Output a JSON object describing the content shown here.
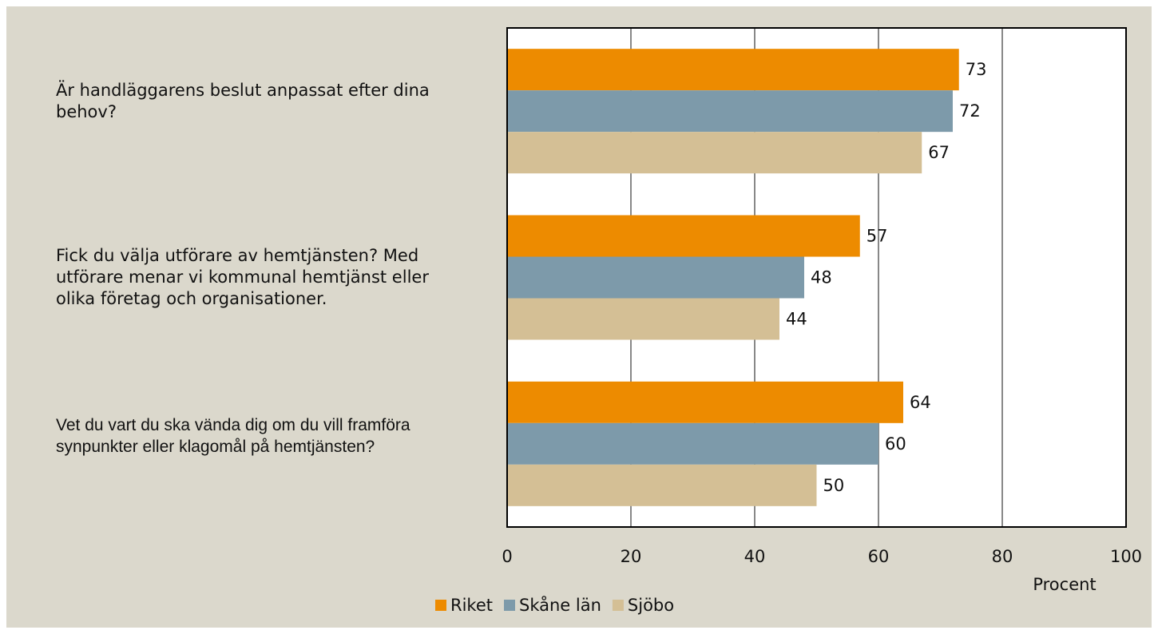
{
  "chart_data": {
    "type": "bar",
    "orientation": "horizontal",
    "categories": [
      "Är handläggarens beslut anpassat efter dina behov?",
      "Fick du välja utförare av hemtjänsten? Med utförare menar vi kommunal hemtjänst eller olika företag och organisationer.",
      "Vet du vart du ska vända dig om du vill framföra synpunkter eller klagomål på hemtjänsten?"
    ],
    "series": [
      {
        "name": "Riket",
        "color": "#ed8b00",
        "values": [
          73,
          57,
          64
        ]
      },
      {
        "name": "Skåne län",
        "color": "#7d9aaa",
        "values": [
          72,
          48,
          60
        ]
      },
      {
        "name": "Sjöbo",
        "color": "#d4bf95",
        "values": [
          67,
          44,
          50
        ]
      }
    ],
    "x_label": "Procent",
    "xlim": [
      0,
      100
    ],
    "xticks": [
      0,
      20,
      40,
      60,
      80,
      100
    ],
    "grid": true,
    "legend": "bottom"
  }
}
